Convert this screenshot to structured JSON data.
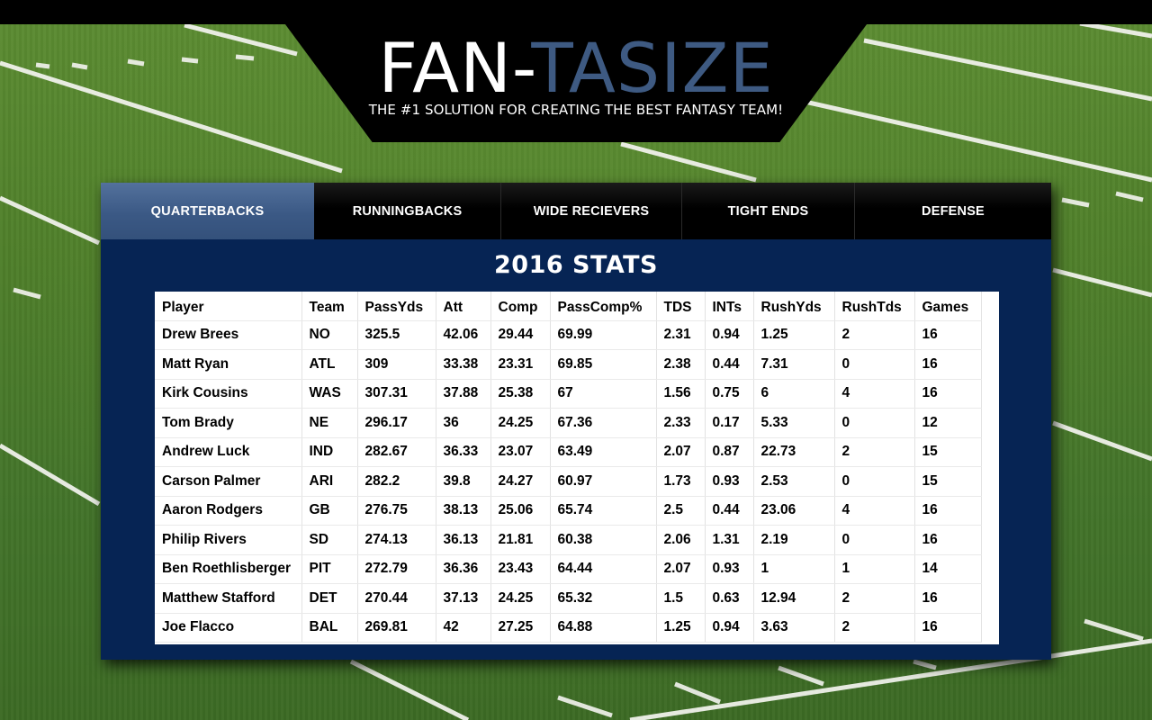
{
  "brand": {
    "logo_part1": "FAN-",
    "logo_part2": "TASIZE",
    "tagline": "THE #1 SOLUTION FOR CREATING THE BEST FANTASY TEAM!",
    "accent_color": "#3e5a82",
    "panel_color": "#062454"
  },
  "tabs": [
    {
      "label": "QUARTERBACKS",
      "active": true
    },
    {
      "label": "RUNNINGBACKS",
      "active": false
    },
    {
      "label": "WIDE RECIEVERS",
      "active": false
    },
    {
      "label": "TIGHT ENDS",
      "active": false
    },
    {
      "label": "DEFENSE",
      "active": false
    }
  ],
  "panel_title": "2016 STATS",
  "table": {
    "columns": [
      "Player",
      "Team",
      "PassYds",
      "Att",
      "Comp",
      "PassComp%",
      "TDS",
      "INTs",
      "RushYds",
      "RushTds",
      "Games"
    ],
    "rows": [
      [
        "Drew Brees",
        "NO",
        "325.5",
        "42.06",
        "29.44",
        "69.99",
        "2.31",
        "0.94",
        "1.25",
        "2",
        "16"
      ],
      [
        "Matt Ryan",
        "ATL",
        "309",
        "33.38",
        "23.31",
        "69.85",
        "2.38",
        "0.44",
        "7.31",
        "0",
        "16"
      ],
      [
        "Kirk Cousins",
        "WAS",
        "307.31",
        "37.88",
        "25.38",
        "67",
        "1.56",
        "0.75",
        "6",
        "4",
        "16"
      ],
      [
        "Tom Brady",
        "NE",
        "296.17",
        "36",
        "24.25",
        "67.36",
        "2.33",
        "0.17",
        "5.33",
        "0",
        "12"
      ],
      [
        "Andrew Luck",
        "IND",
        "282.67",
        "36.33",
        "23.07",
        "63.49",
        "2.07",
        "0.87",
        "22.73",
        "2",
        "15"
      ],
      [
        "Carson Palmer",
        "ARI",
        "282.2",
        "39.8",
        "24.27",
        "60.97",
        "1.73",
        "0.93",
        "2.53",
        "0",
        "15"
      ],
      [
        "Aaron Rodgers",
        "GB",
        "276.75",
        "38.13",
        "25.06",
        "65.74",
        "2.5",
        "0.44",
        "23.06",
        "4",
        "16"
      ],
      [
        "Philip Rivers",
        "SD",
        "274.13",
        "36.13",
        "21.81",
        "60.38",
        "2.06",
        "1.31",
        "2.19",
        "0",
        "16"
      ],
      [
        "Ben Roethlisberger",
        "PIT",
        "272.79",
        "36.36",
        "23.43",
        "64.44",
        "2.07",
        "0.93",
        "1",
        "1",
        "14"
      ],
      [
        "Matthew Stafford",
        "DET",
        "270.44",
        "37.13",
        "24.25",
        "65.32",
        "1.5",
        "0.63",
        "12.94",
        "2",
        "16"
      ],
      [
        "Joe Flacco",
        "BAL",
        "269.81",
        "42",
        "27.25",
        "64.88",
        "1.25",
        "0.94",
        "3.63",
        "2",
        "16"
      ]
    ]
  }
}
